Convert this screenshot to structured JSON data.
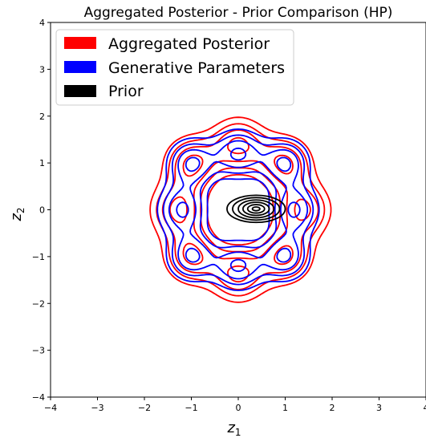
{
  "chart_data": {
    "type": "contour",
    "title": "Aggregated Posterior - Prior Comparison (HP)",
    "xlabel": "z",
    "xlabel_sub": "1",
    "ylabel": "z",
    "ylabel_sub": "2",
    "xlim": [
      -4,
      4
    ],
    "ylim": [
      -4,
      4
    ],
    "xticks": [
      "−4",
      "−3",
      "−2",
      "−1",
      "0",
      "1",
      "2",
      "3",
      "4"
    ],
    "yticks": [
      "−4",
      "−3",
      "−2",
      "−1",
      "0",
      "1",
      "2",
      "3",
      "4"
    ],
    "grid": false,
    "legend_position": "top-left",
    "series": [
      {
        "name": "Aggregated Posterior",
        "color": "#ff0000",
        "components": [
          {
            "x": -1.0,
            "y": 1.0
          },
          {
            "x": 0.0,
            "y": 1.4
          },
          {
            "x": 1.0,
            "y": 1.0
          },
          {
            "x": 1.4,
            "y": 0.0
          },
          {
            "x": 1.0,
            "y": -1.0
          },
          {
            "x": 0.0,
            "y": -1.4
          },
          {
            "x": -1.0,
            "y": -1.0
          },
          {
            "x": -1.3,
            "y": 0.0
          }
        ],
        "levels": [
          0.4,
          0.6,
          0.8,
          1.0,
          1.2
        ]
      },
      {
        "name": "Generative Parameters",
        "color": "#0000ff",
        "components": [
          {
            "x": -1.0,
            "y": 1.0
          },
          {
            "x": 0.0,
            "y": 1.2
          },
          {
            "x": 1.0,
            "y": 1.0
          },
          {
            "x": 1.2,
            "y": 0.0
          },
          {
            "x": 1.0,
            "y": -1.0
          },
          {
            "x": 0.0,
            "y": -1.2
          },
          {
            "x": -1.0,
            "y": -1.0
          },
          {
            "x": -1.2,
            "y": 0.0
          }
        ],
        "levels": [
          0.4,
          0.6,
          0.8,
          1.0,
          1.2
        ]
      },
      {
        "name": "Prior",
        "color": "#000000",
        "center": {
          "x": 0.38,
          "y": 0.02
        },
        "radii_x": [
          0.08,
          0.18,
          0.28,
          0.38,
          0.5,
          0.62
        ],
        "radii_y": [
          0.04,
          0.09,
          0.14,
          0.19,
          0.24,
          0.29
        ]
      }
    ]
  }
}
